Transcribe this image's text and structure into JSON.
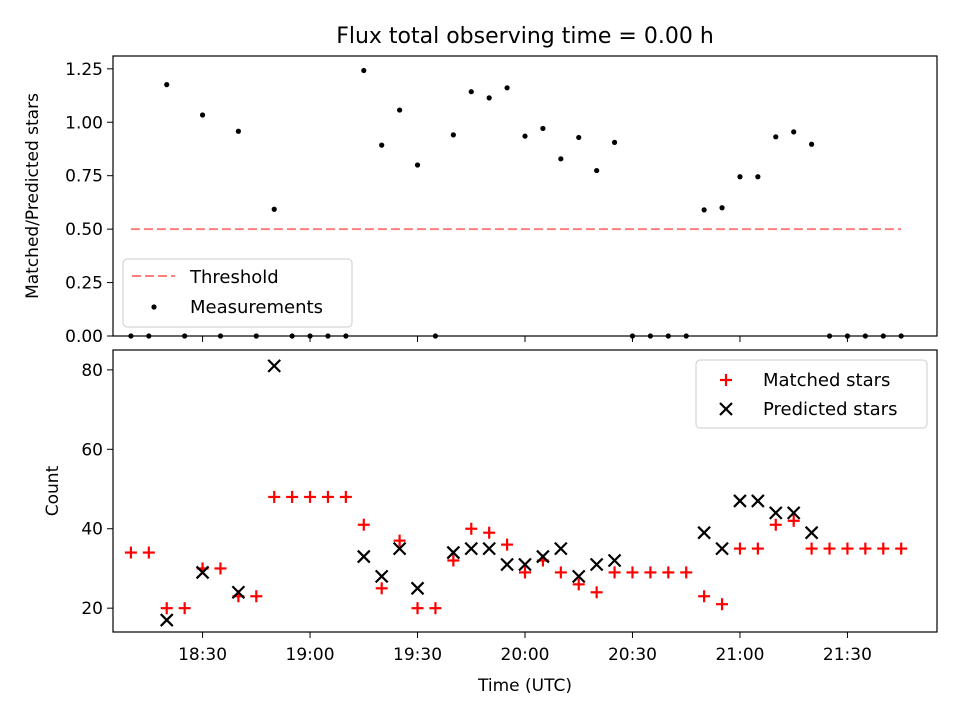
{
  "title": "Flux total observing time = 0.00 h",
  "chart_data": [
    {
      "type": "scatter",
      "panel": "top",
      "title": "Flux total observing time = 0.00 h",
      "xlabel": "",
      "ylabel": "Matched/Predicted stars",
      "ylim": [
        0,
        1.31
      ],
      "yticks": [
        0.0,
        0.25,
        0.5,
        0.75,
        1.0,
        1.25
      ],
      "ytick_labels": [
        "0.00",
        "0.25",
        "0.50",
        "0.75",
        "1.00",
        "1.25"
      ],
      "legend_position": "lower-left",
      "threshold": {
        "name": "Threshold",
        "value": 0.5,
        "x_start": "18:10",
        "x_end": "21:45",
        "color": "#ff7f7f"
      },
      "series": [
        {
          "name": "Measurements",
          "marker": "dot",
          "color": "#000000",
          "x": [
            "18:10",
            "18:15",
            "18:20",
            "18:25",
            "18:30",
            "18:35",
            "18:40",
            "18:45",
            "18:50",
            "18:55",
            "19:00",
            "19:05",
            "19:10",
            "19:15",
            "19:20",
            "19:25",
            "19:30",
            "19:35",
            "19:40",
            "19:45",
            "19:50",
            "19:55",
            "20:00",
            "20:05",
            "20:10",
            "20:15",
            "20:20",
            "20:25",
            "20:30",
            "20:35",
            "20:40",
            "20:45",
            "20:50",
            "20:55",
            "21:00",
            "21:05",
            "21:10",
            "21:15",
            "21:20",
            "21:25",
            "21:30",
            "21:35",
            "21:40",
            "21:45"
          ],
          "y": [
            0,
            0,
            1.176,
            0,
            1.034,
            0,
            0.958,
            0,
            0.593,
            0,
            0,
            0,
            0,
            1.242,
            0.893,
            1.057,
            0.8,
            0,
            0.941,
            1.143,
            1.114,
            1.161,
            0.935,
            0.971,
            0.829,
            0.929,
            0.774,
            0.906,
            0,
            0,
            0,
            0,
            0.59,
            0.6,
            0.745,
            0.745,
            0.932,
            0.955,
            0.897,
            0,
            0,
            0,
            0,
            0
          ]
        }
      ]
    },
    {
      "type": "scatter",
      "panel": "bottom",
      "xlabel": "Time (UTC)",
      "ylabel": "Count",
      "ylim": [
        14,
        85
      ],
      "yticks": [
        20,
        40,
        60,
        80
      ],
      "xlim": [
        "18:05",
        "21:55"
      ],
      "xtick_labels": [
        "18:30",
        "19:00",
        "19:30",
        "20:00",
        "20:30",
        "21:00",
        "21:30"
      ],
      "legend_position": "upper-right",
      "series": [
        {
          "name": "Matched stars",
          "marker": "plus",
          "color": "#ff0000",
          "x": [
            "18:10",
            "18:15",
            "18:20",
            "18:25",
            "18:30",
            "18:35",
            "18:40",
            "18:45",
            "18:50",
            "18:55",
            "19:00",
            "19:05",
            "19:10",
            "19:15",
            "19:20",
            "19:25",
            "19:30",
            "19:35",
            "19:40",
            "19:45",
            "19:50",
            "19:55",
            "20:00",
            "20:05",
            "20:10",
            "20:15",
            "20:20",
            "20:25",
            "20:30",
            "20:35",
            "20:40",
            "20:45",
            "20:50",
            "20:55",
            "21:00",
            "21:05",
            "21:10",
            "21:15",
            "21:20",
            "21:25",
            "21:30",
            "21:35",
            "21:40",
            "21:45"
          ],
          "y": [
            34,
            34,
            20,
            20,
            30,
            30,
            23,
            23,
            48,
            48,
            48,
            48,
            48,
            41,
            25,
            37,
            20,
            20,
            32,
            40,
            39,
            36,
            29,
            32,
            29,
            26,
            24,
            29,
            29,
            29,
            29,
            29,
            23,
            21,
            35,
            35,
            41,
            42,
            35,
            35,
            35,
            35,
            35,
            35
          ]
        },
        {
          "name": "Predicted stars",
          "marker": "x",
          "color": "#000000",
          "x": [
            "18:20",
            "18:30",
            "18:40",
            "18:50",
            "19:15",
            "19:20",
            "19:25",
            "19:30",
            "19:40",
            "19:45",
            "19:50",
            "19:55",
            "20:00",
            "20:05",
            "20:10",
            "20:15",
            "20:20",
            "20:25",
            "20:50",
            "20:55",
            "21:00",
            "21:05",
            "21:10",
            "21:15",
            "21:20"
          ],
          "y": [
            17,
            29,
            24,
            81,
            33,
            28,
            35,
            25,
            34,
            35,
            35,
            31,
            31,
            33,
            35,
            28,
            31,
            32,
            39,
            35,
            47,
            47,
            44,
            44,
            39
          ]
        }
      ]
    }
  ]
}
